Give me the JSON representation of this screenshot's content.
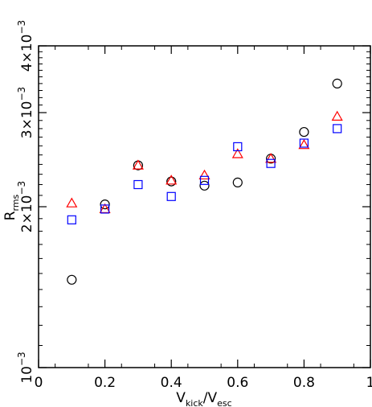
{
  "chart_data": {
    "type": "scatter",
    "x_label": {
      "main": "V",
      "sub1": "kick",
      "slash": "/V",
      "sub2": "esc"
    },
    "y_label": {
      "main": "R",
      "sub": "rms"
    },
    "xlim": [
      0,
      1
    ],
    "ylim": [
      0.001,
      0.004
    ],
    "x_ticks": [
      {
        "value": 0,
        "label": "0"
      },
      {
        "value": 0.2,
        "label": "0.2"
      },
      {
        "value": 0.4,
        "label": "0.4"
      },
      {
        "value": 0.6,
        "label": "0.6"
      },
      {
        "value": 0.8,
        "label": "0.8"
      },
      {
        "value": 1,
        "label": "1"
      }
    ],
    "y_ticks": [
      {
        "value": 0.001,
        "mant": "10",
        "exp": "−3"
      },
      {
        "value": 0.002,
        "mant": "2×10",
        "exp": "−3"
      },
      {
        "value": 0.003,
        "mant": "3×10",
        "exp": "−3"
      },
      {
        "value": 0.004,
        "mant": "4×10",
        "exp": "−3"
      }
    ],
    "series": [
      {
        "marker": "circle",
        "color": "#000000",
        "x": [
          0.1,
          0.2,
          0.3,
          0.4,
          0.5,
          0.6,
          0.7,
          0.8,
          0.9
        ],
        "y": [
          0.00146,
          0.00202,
          0.00239,
          0.00223,
          0.00219,
          0.00222,
          0.00246,
          0.00276,
          0.0034
        ]
      },
      {
        "marker": "triangle",
        "color": "#ff0000",
        "x": [
          0.1,
          0.2,
          0.3,
          0.4,
          0.5,
          0.6,
          0.7,
          0.8,
          0.9
        ],
        "y": [
          0.00203,
          0.00198,
          0.00239,
          0.00224,
          0.00229,
          0.00251,
          0.00246,
          0.00261,
          0.00295
        ]
      },
      {
        "marker": "square",
        "color": "#0000ff",
        "x": [
          0.1,
          0.2,
          0.3,
          0.4,
          0.5,
          0.6,
          0.7,
          0.8,
          0.9
        ],
        "y": [
          0.00189,
          0.00198,
          0.0022,
          0.00209,
          0.00224,
          0.00259,
          0.00241,
          0.00263,
          0.0028
        ]
      }
    ]
  }
}
